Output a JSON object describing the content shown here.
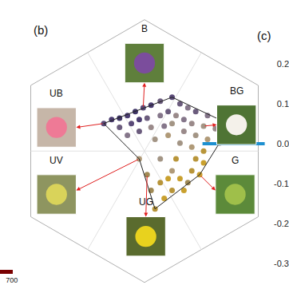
{
  "chart_data": [
    {
      "type": "scatter",
      "title": "(b)",
      "annotations": [
        "B",
        "BG",
        "G",
        "UG",
        "UV",
        "UB"
      ],
      "xlim": [
        -1.1,
        1.1
      ],
      "ylim": [
        -1.05,
        1.15
      ],
      "tick_labels": false,
      "series": [
        {
          "type": "scatter",
          "x": [
            -0.31,
            -0.25,
            -0.19,
            -0.13,
            -0.07,
            -0.01,
            0.05,
            0.12,
            0.21,
            0.27,
            0.33,
            0.39,
            0.48,
            0.57,
            -0.19,
            -0.1,
            -0.04,
            0.02,
            0.12,
            0.18,
            0.24,
            0.3,
            0.36,
            0.45,
            0.54,
            -0.13,
            -0.04,
            0.05,
            0.15,
            0.21,
            0.3,
            0.39,
            0.48,
            0.57,
            0.08,
            0.18,
            0.27,
            0.36,
            0.45,
            0.39,
            0.45,
            0.36,
            0.42,
            0.33,
            0.27,
            0.21,
            0.15,
            0.08,
            0.05,
            0.18,
            0.3,
            0.21,
            0.12,
            0.02,
            -0.04,
            0.12,
            0.24
          ],
          "values": [
            0.21,
            0.24,
            0.25,
            0.27,
            0.3,
            0.33,
            0.35,
            0.38,
            0.41,
            0.36,
            0.33,
            0.3,
            0.27,
            0.24,
            0.18,
            0.21,
            0.24,
            0.25,
            0.27,
            0.3,
            0.27,
            0.24,
            0.21,
            0.19,
            0.17,
            0.12,
            0.15,
            0.18,
            0.19,
            0.21,
            0.15,
            0.12,
            0.09,
            0.06,
            0.09,
            0.12,
            0.06,
            0.03,
            0.0,
            -0.06,
            -0.09,
            -0.15,
            -0.18,
            -0.24,
            -0.21,
            -0.3,
            -0.36,
            -0.44,
            -0.3,
            -0.21,
            -0.3,
            -0.15,
            -0.24,
            -0.18,
            -0.06,
            -0.06,
            -0.06
          ],
          "colors": [
            "#5a4a78",
            "#4a3c70",
            "#3f3566",
            "#4a3c70",
            "#3f3566",
            "#5a4a78",
            "#4a3c70",
            "#6b5c7d",
            "#5a4a78",
            "#6b5c7d",
            "#85768a",
            "#6b5c7d",
            "#85768a",
            "#9a8a8a",
            "#6b5c7d",
            "#5a4a78",
            "#4a3c70",
            "#6b5c7d",
            "#85768a",
            "#6b5c7d",
            "#9a8a8a",
            "#85768a",
            "#9a8a8a",
            "#a39585",
            "#9a8a8a",
            "#85768a",
            "#6b5c7d",
            "#9a8a8a",
            "#85768a",
            "#a39585",
            "#9a8a8a",
            "#a39585",
            "#b09a78",
            "#a39585",
            "#a39585",
            "#b09a78",
            "#a39585",
            "#b09a78",
            "#b8953a",
            "#b8953a",
            "#c9a02e",
            "#b8953a",
            "#c9a02e",
            "#a08a55",
            "#c9a02e",
            "#b8953a",
            "#c9a02e",
            "#b8953a",
            "#a08a55",
            "#c9a02e",
            "#c9a02e",
            "#b09a78",
            "#b8953a",
            "#a08a55",
            "#b09a78",
            "#a39585",
            "#b8953a"
          ]
        },
        {
          "type": "line",
          "color": "#222222",
          "x": [
            -0.31,
            0.21,
            0.57,
            0.57,
            0.42,
            0.08,
            -0.04,
            -0.31
          ],
          "values": [
            0.21,
            0.41,
            0.24,
            0.06,
            -0.18,
            -0.44,
            -0.06,
            0.21
          ]
        }
      ]
    },
    {
      "type": "line",
      "title": "(c)",
      "tick_labels": "y",
      "xlim": [
        0,
        1
      ],
      "ylim": [
        -0.35,
        0.25
      ],
      "yticks": [
        0.2,
        0.1,
        {
          "value": 0,
          "label": "0.0"
        },
        -0.1,
        -0.2,
        -0.3
      ],
      "series": [
        {
          "color": "#1e90d0",
          "x": [
            0,
            0.72
          ],
          "values": [
            0,
            0
          ]
        }
      ]
    },
    {
      "type": "line",
      "tick_labels": "x",
      "color": "#7a0000",
      "xlim": [
        650,
        705
      ],
      "xticks": [
        700
      ]
    }
  ]
}
